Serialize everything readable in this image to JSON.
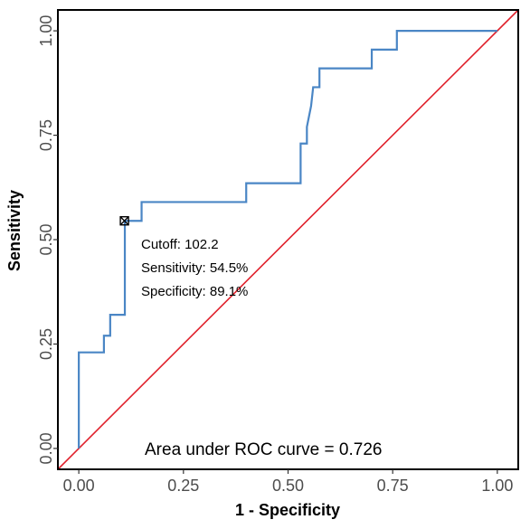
{
  "chart_data": {
    "type": "line",
    "xlabel": "1 - Specificity",
    "ylabel": "Sensitivity",
    "xlim": [
      -0.05,
      1.05
    ],
    "ylim": [
      -0.05,
      1.05
    ],
    "x_ticks": [
      0.0,
      0.25,
      0.5,
      0.75,
      1.0
    ],
    "x_tick_labels": [
      "0.00",
      "0.25",
      "0.50",
      "0.75",
      "1.00"
    ],
    "y_ticks": [
      0.0,
      0.25,
      0.5,
      0.75,
      1.0
    ],
    "y_tick_labels": [
      "0.00",
      "0.25",
      "0.50",
      "0.75",
      "1.00"
    ],
    "grid": false,
    "series": [
      {
        "color": "#4a86c5",
        "x": [
          0.0,
          0.0,
          0.06,
          0.06,
          0.075,
          0.075,
          0.11,
          0.11,
          0.15,
          0.15,
          0.4,
          0.4,
          0.53,
          0.53,
          0.545,
          0.545,
          0.555,
          0.56,
          0.575,
          0.575,
          0.7,
          0.7,
          0.76,
          0.76,
          1.0
        ],
        "y": [
          0.0,
          0.23,
          0.23,
          0.27,
          0.27,
          0.32,
          0.32,
          0.545,
          0.545,
          0.59,
          0.59,
          0.635,
          0.635,
          0.73,
          0.73,
          0.77,
          0.82,
          0.865,
          0.865,
          0.91,
          0.91,
          0.955,
          0.955,
          1.0,
          1.0
        ]
      },
      {
        "color": "#e0202b",
        "x": [
          -0.05,
          1.05
        ],
        "y": [
          -0.05,
          1.05
        ]
      }
    ],
    "marker": {
      "x": 0.109,
      "y": 0.545
    },
    "annotation": [
      "Cutoff: 102.2",
      "Sensitivity: 54.5%",
      "Specificity: 89.1%"
    ],
    "auc_text": "Area under ROC curve =  0.726"
  }
}
